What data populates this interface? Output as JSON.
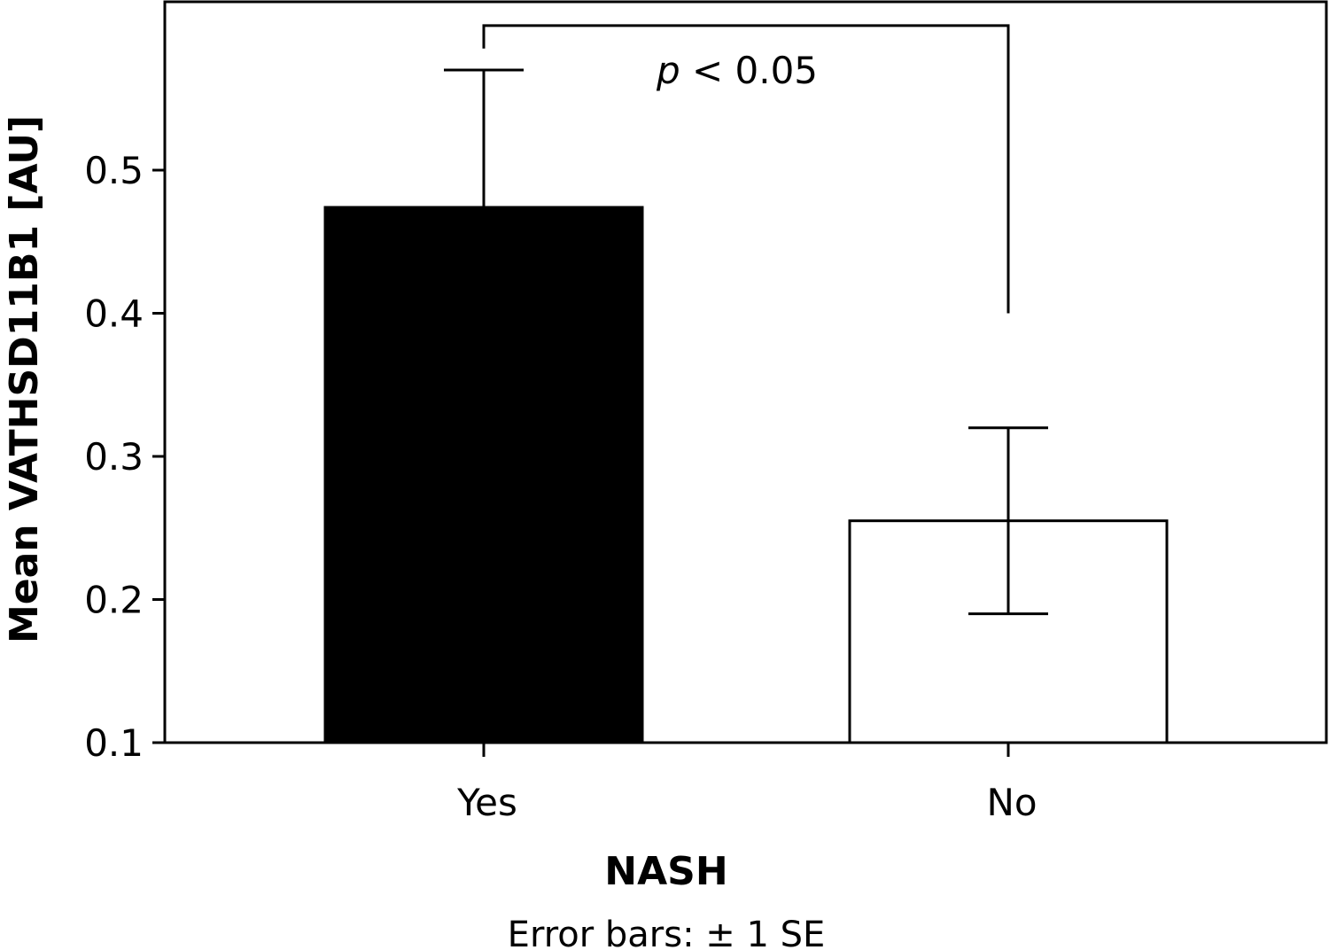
{
  "chart_data": {
    "type": "bar",
    "categories": [
      "Yes",
      "No"
    ],
    "values": [
      0.474,
      0.255
    ],
    "error_bars": {
      "upper": [
        0.57,
        0.32
      ],
      "lower": [
        0.474,
        0.19
      ]
    },
    "bar_colors": [
      "#000000",
      "#ffffff"
    ],
    "title": "",
    "xlabel": "NASH",
    "ylabel": "Mean VATHSD11B1 [AU]",
    "ylim": [
      0.1,
      0.6
    ],
    "yticks": [
      0.1,
      0.2,
      0.3,
      0.4,
      0.5
    ],
    "ytick_labels": [
      "0.1",
      "0.2",
      "0.3",
      "0.4",
      "0.5"
    ],
    "grid": false,
    "legend": "none",
    "note": "Error bars: ± 1 SE",
    "annotation": {
      "p_symbol": "p",
      "p_rest": " < 0.05",
      "bracket_from": 0,
      "bracket_to": 1,
      "bracket_top": 0.601,
      "bracket_start_left": 0.585,
      "bracket_start_right": 0.4
    }
  }
}
